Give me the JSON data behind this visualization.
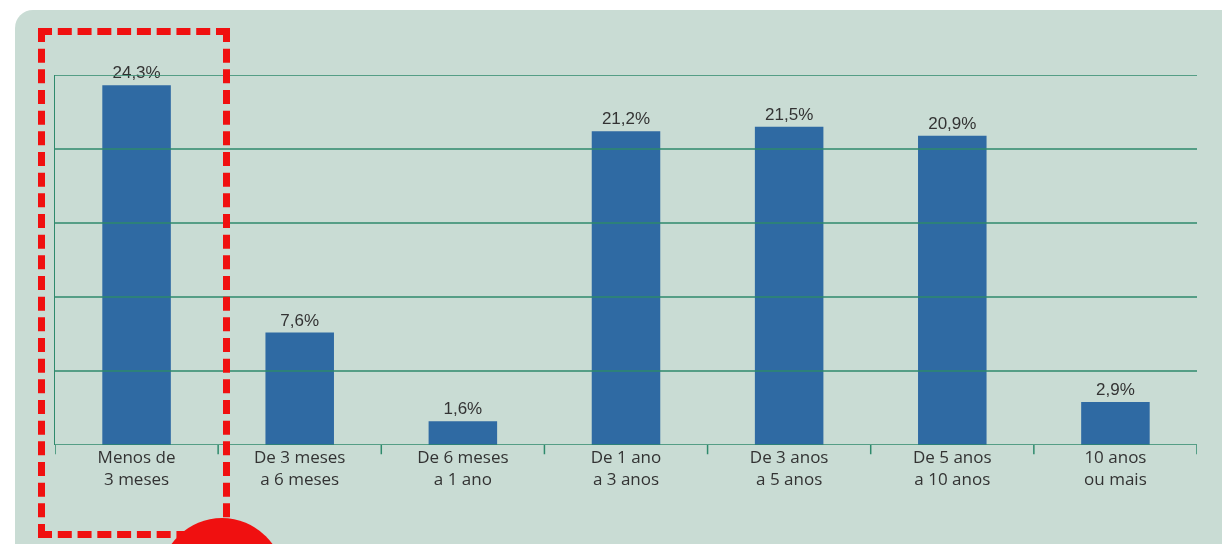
{
  "chart_data": {
    "type": "bar",
    "categories": [
      "Menos de\n3 meses",
      "De 3 meses\na 6 meses",
      "De 6 meses\na 1 ano",
      "De 1 ano\na 3 anos",
      "De 3 anos\na 5 anos",
      "De 5 anos\na 10 anos",
      "10 anos\nou mais"
    ],
    "values": [
      24.3,
      7.6,
      1.6,
      21.2,
      21.5,
      20.9,
      2.9
    ],
    "value_labels": [
      "24,3%",
      "7,6%",
      "1,6%",
      "21,2%",
      "21,5%",
      "20,9%",
      "2,9%"
    ],
    "color": "#2f6aa3",
    "ylim": [
      0,
      25
    ],
    "yticks": [
      {
        "value": 0,
        "label": null
      },
      {
        "value": 5,
        "label": null
      },
      {
        "value": 10,
        "label": null
      },
      {
        "value": 15,
        "label": null
      },
      {
        "value": 20,
        "label": null
      },
      {
        "value": 25,
        "label": null
      }
    ],
    "grid": "y",
    "tick_labels": "x",
    "legend": false
  }
}
